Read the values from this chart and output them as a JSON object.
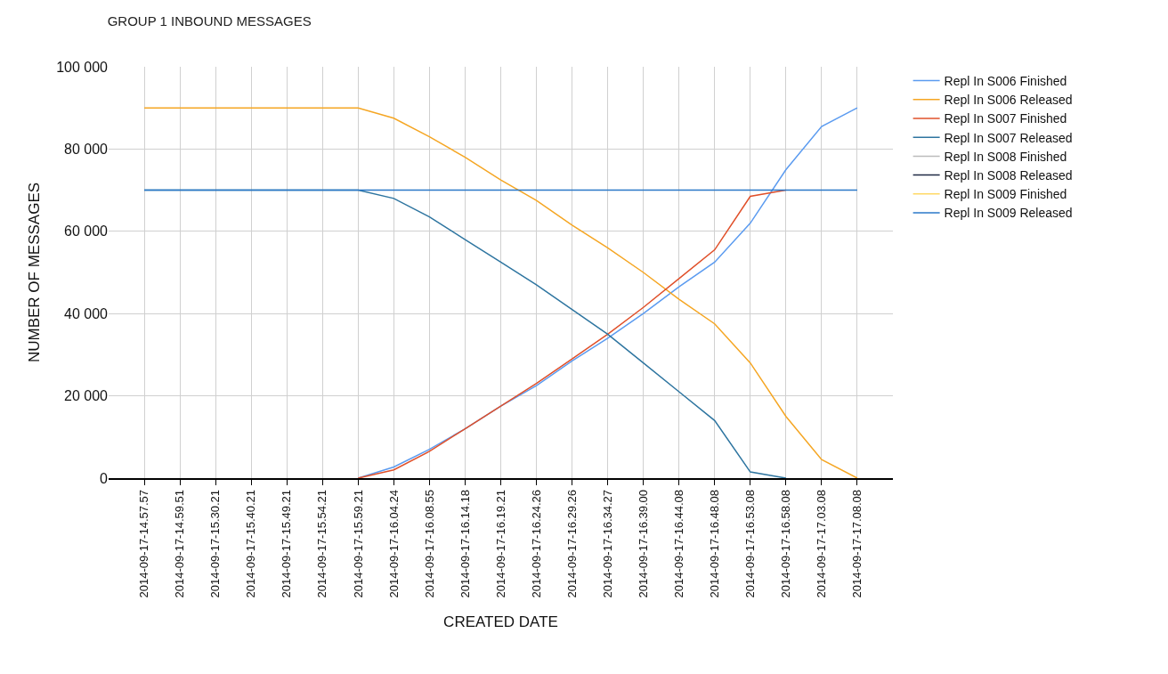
{
  "chart_data": {
    "type": "line",
    "title": "GROUP 1 INBOUND MESSAGES",
    "xlabel": "CREATED DATE",
    "ylabel": "NUMBER OF MESSAGES",
    "categories": [
      "2014-09-17-14.57.57",
      "2014-09-17-14.59.51",
      "2014-09-17-15.30.21",
      "2014-09-17-15.40.21",
      "2014-09-17-15.49.21",
      "2014-09-17-15.54.21",
      "2014-09-17-15.59.21",
      "2014-09-17-16.04.24",
      "2014-09-17-16.08.55",
      "2014-09-17-16.14.18",
      "2014-09-17-16.19.21",
      "2014-09-17-16.24.26",
      "2014-09-17-16.29.26",
      "2014-09-17-16.34.27",
      "2014-09-17-16.39.00",
      "2014-09-17-16.44.08",
      "2014-09-17-16.48.08",
      "2014-09-17-16.53.08",
      "2014-09-17-16.58.08",
      "2014-09-17-17.03.08",
      "2014-09-17-17.08.08"
    ],
    "series": [
      {
        "name": "Repl In S006 Finished",
        "color": "#5b9bf0",
        "values": [
          null,
          null,
          null,
          null,
          null,
          null,
          0,
          2700,
          7000,
          12000,
          17500,
          22500,
          28500,
          34000,
          40000,
          46500,
          52500,
          62000,
          75000,
          85500,
          90000
        ]
      },
      {
        "name": "Repl In S006 Released",
        "color": "#f5a623",
        "values": [
          90000,
          90000,
          90000,
          90000,
          90000,
          90000,
          90000,
          87500,
          83000,
          78000,
          72500,
          67500,
          61500,
          56000,
          50000,
          43500,
          37500,
          28000,
          15000,
          4500,
          0
        ]
      },
      {
        "name": "Repl In S007 Finished",
        "color": "#e0502a",
        "values": [
          null,
          null,
          null,
          null,
          null,
          null,
          0,
          2000,
          6500,
          12000,
          17500,
          23000,
          29000,
          35000,
          41500,
          48500,
          55500,
          68500,
          70000,
          null,
          null
        ]
      },
      {
        "name": "Repl In S007 Released",
        "color": "#2e75a0",
        "values": [
          70000,
          70000,
          70000,
          70000,
          70000,
          70000,
          70000,
          68000,
          63500,
          58000,
          52500,
          47000,
          41000,
          35000,
          28000,
          21000,
          14000,
          1500,
          0,
          null,
          null
        ]
      },
      {
        "name": "Repl In S008 Finished",
        "color": "#bbbbbb",
        "values": [
          null,
          null,
          null,
          null,
          null,
          null,
          null,
          null,
          null,
          null,
          null,
          null,
          null,
          null,
          null,
          null,
          null,
          null,
          null,
          null,
          null
        ]
      },
      {
        "name": "Repl In S008 Released",
        "color": "#1f2a44",
        "values": [
          null,
          null,
          null,
          null,
          null,
          null,
          null,
          null,
          null,
          null,
          null,
          null,
          null,
          null,
          null,
          null,
          null,
          null,
          null,
          null,
          null
        ]
      },
      {
        "name": "Repl In S009 Finished",
        "color": "#ffd966",
        "values": [
          null,
          null,
          null,
          null,
          null,
          null,
          null,
          null,
          null,
          null,
          null,
          null,
          null,
          null,
          null,
          null,
          null,
          null,
          null,
          null,
          null
        ]
      },
      {
        "name": "Repl In S009 Released",
        "color": "#2a78c8",
        "values": [
          70000,
          70000,
          70000,
          70000,
          70000,
          70000,
          70000,
          70000,
          70000,
          70000,
          70000,
          70000,
          70000,
          70000,
          70000,
          70000,
          70000,
          70000,
          70000,
          70000,
          70000
        ]
      }
    ],
    "ylim": [
      0,
      100000
    ],
    "yticks": [
      0,
      {
        "value": 20000,
        "label": "20 000"
      },
      {
        "value": 40000,
        "label": "40 000"
      },
      {
        "value": 60000,
        "label": "60 000"
      },
      {
        "value": 80000,
        "label": "80 000"
      },
      {
        "value": 100000,
        "label": "100 000"
      }
    ],
    "grid": true,
    "legend": "top right",
    "marker": "none",
    "line_style": "solid"
  }
}
